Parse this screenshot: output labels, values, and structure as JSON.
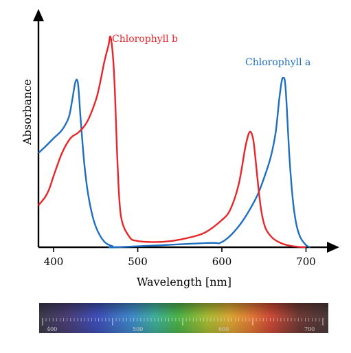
{
  "chart_data": {
    "type": "line",
    "xlabel": "Wavelength [nm]",
    "ylabel": "Absorbance",
    "xlim": [
      382,
      720
    ],
    "ylim": [
      0,
      1
    ],
    "x_ticks": [
      400,
      500,
      600,
      700
    ],
    "grid": false,
    "legend": "inline labels at peaks",
    "series": [
      {
        "name": "Chlorophyll a",
        "color": "#1f6fc1",
        "x": [
          382,
          390,
          400,
          410,
          418,
          422,
          426,
          429,
          432,
          436,
          440,
          445,
          450,
          456,
          462,
          470,
          475,
          580,
          600,
          620,
          640,
          650,
          658,
          664,
          668,
          671,
          673,
          675,
          677,
          680,
          684,
          688,
          693,
          700,
          705
        ],
        "y": [
          0.45,
          0.48,
          0.52,
          0.56,
          0.62,
          0.7,
          0.79,
          0.78,
          0.62,
          0.42,
          0.28,
          0.17,
          0.1,
          0.05,
          0.02,
          0.005,
          0.0,
          0.02,
          0.025,
          0.1,
          0.23,
          0.33,
          0.43,
          0.55,
          0.7,
          0.79,
          0.81,
          0.79,
          0.68,
          0.45,
          0.24,
          0.12,
          0.05,
          0.01,
          0.0
        ]
      },
      {
        "name": "Chlorophyll b",
        "color": "#e8262a",
        "x": [
          382,
          390,
          395,
          400,
          410,
          420,
          430,
          440,
          450,
          455,
          460,
          465,
          468,
          472,
          476,
          480,
          490,
          500,
          520,
          540,
          560,
          580,
          600,
          610,
          620,
          628,
          633,
          637,
          640,
          643,
          647,
          652,
          660,
          670,
          680,
          690,
          700
        ],
        "y": [
          0.2,
          0.24,
          0.28,
          0.34,
          0.45,
          0.52,
          0.55,
          0.6,
          0.7,
          0.78,
          0.88,
          0.96,
          1.0,
          0.82,
          0.4,
          0.15,
          0.05,
          0.03,
          0.025,
          0.03,
          0.045,
          0.07,
          0.13,
          0.18,
          0.3,
          0.48,
          0.55,
          0.52,
          0.42,
          0.3,
          0.17,
          0.09,
          0.045,
          0.02,
          0.008,
          0.002,
          0.0
        ]
      }
    ]
  },
  "spectrum_bar": {
    "ticks": [
      "400",
      "500",
      "600",
      "700"
    ]
  }
}
